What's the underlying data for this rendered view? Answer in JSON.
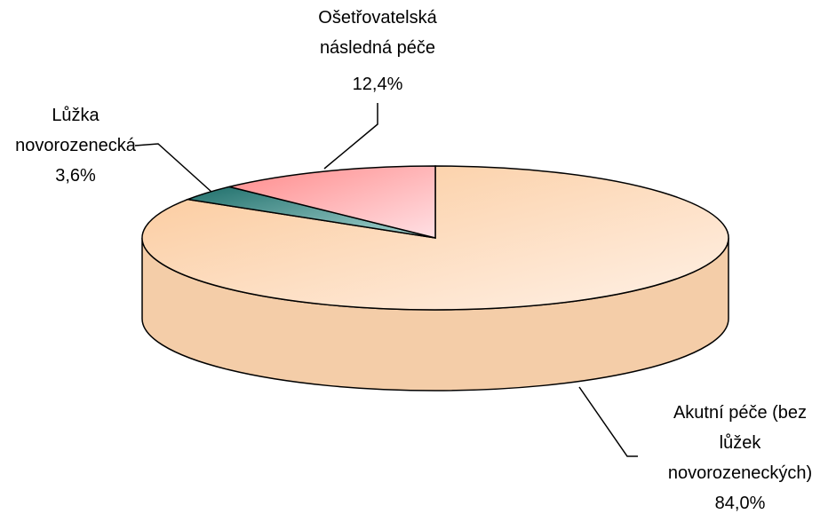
{
  "chart_data": {
    "type": "pie3d",
    "categories": [
      "Akutní péče (bez lůžek novorozeneckých)",
      "Lůžka novorozenecká",
      "Ošetřovatelská následná péče"
    ],
    "values": [
      84.0,
      3.6,
      12.4
    ],
    "value_labels": [
      "84,0%",
      "3,6%",
      "12,4%"
    ],
    "colors": [
      "#fcd3ad",
      "#2e8884",
      "#ff9a9a"
    ]
  }
}
